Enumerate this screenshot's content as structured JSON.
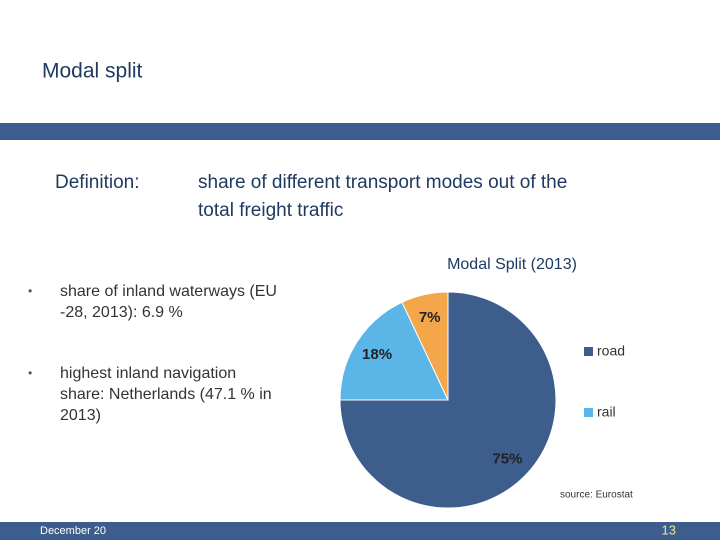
{
  "slide": {
    "title": "Modal split",
    "definition_term": "Definition:",
    "definition_text": [
      "share of different transport modes out of the",
      "total freight traffic"
    ],
    "bullets": [
      [
        "share of inland waterways (EU",
        "-28, 2013): 6.9 %"
      ],
      [
        "highest inland navigation",
        "share: Netherlands (47.1 % in",
        "2013)"
      ]
    ],
    "source": "source: Eurostat",
    "footer_date": "December 20",
    "page_number": "13"
  },
  "chart_data": {
    "type": "pie",
    "title": "Modal Split (2013)",
    "categories": [
      "road",
      "rail",
      null
    ],
    "values": [
      75,
      18,
      7
    ],
    "value_labels": [
      "75%",
      "18%",
      "7%"
    ],
    "colors": [
      "#3d5e8c",
      "#5bb5e6",
      "#f4a64b"
    ],
    "legend": "right"
  }
}
